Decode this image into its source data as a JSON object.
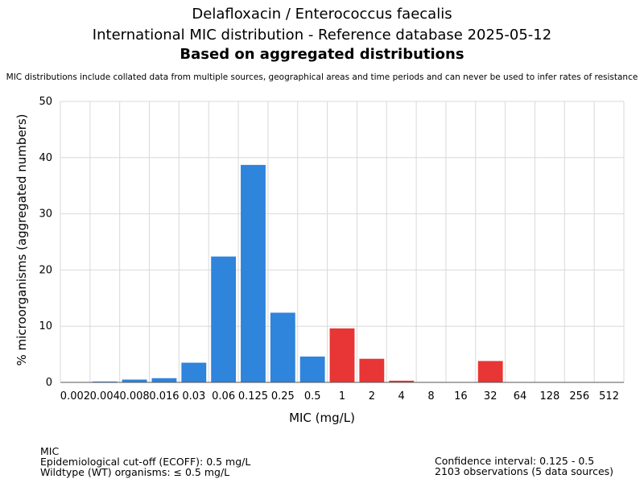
{
  "header": {
    "title": "Delafloxacin / Enterococcus faecalis",
    "subtitle": "International MIC distribution - Reference database 2025-05-12",
    "subtitle2": "Based on aggregated distributions",
    "disclaimer": "MIC distributions include collated data from multiple sources, geographical areas and time periods and can never be used to infer rates of resistance"
  },
  "footer": {
    "left": [
      "MIC",
      "Epidemiological cut-off (ECOFF): 0.5 mg/L",
      "Wildtype (WT) organisms: ≤ 0.5 mg/L"
    ],
    "right": [
      "Confidence interval: 0.125 - 0.5",
      "2103 observations (5 data sources)"
    ]
  },
  "colors": {
    "wildtype": "#2f84db",
    "non_wildtype": "#e83535",
    "grid": "#d9d9d9",
    "axis": "#555555"
  },
  "chart_data": {
    "type": "bar",
    "xlabel": "MIC (mg/L)",
    "ylabel": "% microorganisms (aggregated numbers)",
    "ylim": [
      0,
      50
    ],
    "yticks": [
      0,
      10,
      20,
      30,
      40,
      50
    ],
    "grid": true,
    "categories": [
      "0.002",
      "0.004",
      "0.008",
      "0.016",
      "0.03",
      "0.06",
      "0.125",
      "0.25",
      "0.5",
      "1",
      "2",
      "4",
      "8",
      "16",
      "32",
      "64",
      "128",
      "256",
      "512"
    ],
    "values": [
      0,
      0.15,
      0.5,
      0.75,
      3.5,
      22.4,
      38.7,
      12.4,
      4.6,
      9.6,
      4.2,
      0.3,
      0,
      0,
      3.8,
      0,
      0,
      0,
      0
    ],
    "groups": [
      "wildtype",
      "wildtype",
      "wildtype",
      "wildtype",
      "wildtype",
      "wildtype",
      "wildtype",
      "wildtype",
      "wildtype",
      "non_wildtype",
      "non_wildtype",
      "non_wildtype",
      "non_wildtype",
      "non_wildtype",
      "non_wildtype",
      "non_wildtype",
      "non_wildtype",
      "non_wildtype",
      "non_wildtype"
    ]
  }
}
